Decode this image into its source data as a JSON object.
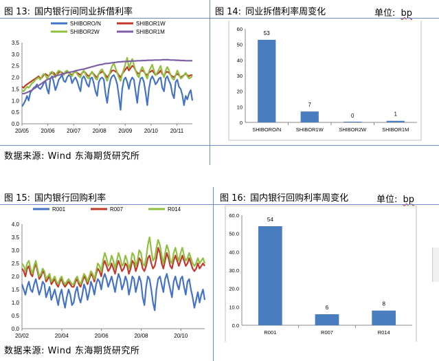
{
  "panels": {
    "p13": {
      "fig": "图 13:",
      "title": "国内银行间同业拆借利率"
    },
    "p14": {
      "fig": "图 14:",
      "title": "同业拆借利率周变化",
      "unit_label": "单位:",
      "unit_value": "bp"
    },
    "p15": {
      "fig": "图 15:",
      "title": "国内银行回购利率"
    },
    "p16": {
      "fig": "图 16:",
      "title": "国内银行回购利率周变化",
      "unit_label": "单位:",
      "unit_value": "bp"
    }
  },
  "source_top": "数据来源: Wind   东海期货研究所",
  "source_bottom": "数据来源: Wind   东海期货研究所",
  "colors": {
    "blue": "#4472c4",
    "red": "#c0392b",
    "green": "#8fbf3f",
    "purple": "#7d5fa6",
    "bar": "#4a7cc0"
  },
  "chart_data": [
    {
      "type": "line",
      "x_ticks": [
        "20/05",
        "20/06",
        "20/07",
        "20/08",
        "20/09",
        "20/10",
        "20/11"
      ],
      "y_ticks": [
        "0.0",
        "0.5",
        "1.0",
        "1.5",
        "2.0",
        "2.5",
        "3.0",
        "3.5"
      ],
      "ylim": [
        0,
        3.5
      ],
      "series": [
        {
          "name": "SHIBORO/N",
          "color": "#4472c4",
          "values": [
            0.75,
            0.85,
            1.0,
            1.2,
            1.0,
            1.35,
            1.45,
            1.55,
            1.6,
            1.7,
            1.55,
            1.5,
            1.6,
            1.75,
            1.85,
            1.5,
            1.3,
            1.95,
            2.05,
            1.8,
            1.45,
            1.65,
            1.9,
            2.0,
            2.1,
            1.85,
            1.8,
            2.0,
            2.1,
            2.05,
            1.75,
            1.9,
            2.0,
            1.85,
            1.6,
            1.4,
            1.95,
            2.05,
            1.9,
            1.7,
            1.6,
            1.95,
            2.0,
            1.75,
            1.4,
            1.2,
            1.8,
            1.95,
            2.0,
            1.9,
            1.3,
            0.9,
            1.5,
            1.9,
            2.05,
            2.1,
            1.95,
            1.7,
            1.2,
            0.6,
            1.5,
            1.9,
            2.0,
            1.8,
            1.5,
            1.85,
            2.0,
            1.9,
            1.4,
            0.9,
            1.6,
            1.95,
            2.0,
            1.8,
            1.35,
            0.8,
            1.5,
            1.9,
            2.05,
            1.9,
            1.7,
            1.8,
            1.95,
            2.0,
            1.55,
            1.4,
            1.95,
            2.05,
            1.85,
            1.7,
            1.3,
            1.1,
            1.8,
            1.9,
            1.6,
            1.5,
            1.25,
            0.8,
            1.2,
            1.05,
            1.3,
            1.45,
            1.0
          ]
        },
        {
          "name": "SHIBOR1W",
          "color": "#c0392b",
          "values": [
            1.6,
            1.55,
            1.65,
            1.7,
            1.75,
            1.8,
            1.85,
            1.9,
            1.95,
            2.0,
            2.05,
            1.95,
            2.0,
            2.1,
            2.15,
            2.1,
            2.05,
            2.15,
            2.2,
            2.2,
            2.1,
            2.15,
            2.2,
            2.25,
            2.2,
            2.15,
            2.2,
            2.25,
            2.2,
            2.15,
            2.1,
            2.2,
            2.25,
            2.2,
            2.15,
            2.1,
            2.2,
            2.25,
            2.2,
            2.1,
            2.05,
            2.15,
            2.2,
            2.15,
            2.05,
            2.0,
            2.15,
            2.2,
            2.25,
            2.2,
            2.1,
            2.0,
            2.1,
            2.2,
            2.3,
            2.3,
            2.25,
            2.2,
            2.1,
            2.0,
            2.15,
            2.25,
            2.35,
            2.45,
            2.3,
            2.4,
            2.5,
            2.45,
            2.3,
            2.2,
            2.15,
            2.25,
            2.3,
            2.25,
            2.15,
            2.1,
            2.2,
            2.25,
            2.3,
            2.2,
            2.1,
            2.15,
            2.2,
            2.3,
            2.15,
            2.05,
            2.2,
            2.25,
            2.2,
            2.1,
            2.05,
            2.0,
            2.1,
            2.15,
            2.1,
            2.0,
            2.05,
            2.1,
            2.15,
            2.1,
            2.05,
            2.1,
            2.1
          ]
        },
        {
          "name": "SHIBOR2W",
          "color": "#8fbf3f",
          "values": [
            1.45,
            1.4,
            1.5,
            1.6,
            1.55,
            1.65,
            1.75,
            1.8,
            1.9,
            1.95,
            2.0,
            1.9,
            2.05,
            2.15,
            2.1,
            1.95,
            2.05,
            2.2,
            2.25,
            2.1,
            2.0,
            2.2,
            2.3,
            2.25,
            2.15,
            2.1,
            2.25,
            2.3,
            2.2,
            2.1,
            2.05,
            2.2,
            2.3,
            2.15,
            2.05,
            2.0,
            2.2,
            2.3,
            2.15,
            2.0,
            1.95,
            2.15,
            2.25,
            2.1,
            1.95,
            1.9,
            2.15,
            2.3,
            2.35,
            2.2,
            2.0,
            1.85,
            2.05,
            2.3,
            2.5,
            2.6,
            2.4,
            2.2,
            2.0,
            1.85,
            2.15,
            2.35,
            2.6,
            2.85,
            2.4,
            2.6,
            2.8,
            2.55,
            2.3,
            2.1,
            2.0,
            2.3,
            2.45,
            2.3,
            2.1,
            1.95,
            2.25,
            2.4,
            2.55,
            2.3,
            2.1,
            2.2,
            2.35,
            2.5,
            2.2,
            2.0,
            2.3,
            2.45,
            2.3,
            2.1,
            1.95,
            1.9,
            2.1,
            2.3,
            2.15,
            1.95,
            2.0,
            2.1,
            2.2,
            2.05,
            1.95,
            2.0,
            2.05
          ]
        },
        {
          "name": "SHIBOR1M",
          "color": "#7d5fa6",
          "values": [
            1.3,
            1.3,
            1.32,
            1.35,
            1.38,
            1.42,
            1.45,
            1.5,
            1.55,
            1.6,
            1.65,
            1.7,
            1.75,
            1.8,
            1.85,
            1.9,
            1.93,
            1.96,
            2.0,
            2.02,
            2.05,
            2.08,
            2.1,
            2.12,
            2.14,
            2.16,
            2.18,
            2.2,
            2.22,
            2.23,
            2.24,
            2.26,
            2.28,
            2.3,
            2.32,
            2.33,
            2.35,
            2.36,
            2.38,
            2.4,
            2.42,
            2.44,
            2.46,
            2.48,
            2.5,
            2.52,
            2.54,
            2.55,
            2.56,
            2.58,
            2.6,
            2.6,
            2.61,
            2.62,
            2.63,
            2.64,
            2.65,
            2.66,
            2.67,
            2.67,
            2.68,
            2.68,
            2.69,
            2.69,
            2.7,
            2.7,
            2.71,
            2.71,
            2.71,
            2.72,
            2.72,
            2.72,
            2.73,
            2.73,
            2.73,
            2.74,
            2.74,
            2.74,
            2.74,
            2.75,
            2.75,
            2.75,
            2.75,
            2.75,
            2.76,
            2.76,
            2.76,
            2.76,
            2.76,
            2.75,
            2.75,
            2.75,
            2.74,
            2.74,
            2.74,
            2.73,
            2.73,
            2.73,
            2.72,
            2.72,
            2.72,
            2.72,
            2.72
          ]
        }
      ]
    },
    {
      "type": "bar",
      "categories": [
        "SHIBORO/N",
        "SHIBOR1W",
        "SHIBOR2W",
        "SHIBOR1M"
      ],
      "values": [
        53,
        7,
        0,
        1
      ],
      "y_ticks": [
        "0",
        "10",
        "20",
        "30",
        "40",
        "50",
        "60"
      ],
      "ylim": [
        0,
        60
      ]
    },
    {
      "type": "line",
      "x_ticks": [
        "20/02",
        "20/04",
        "20/06",
        "20/08",
        "20/10"
      ],
      "y_ticks": [
        "0.0",
        "0.5",
        "1.0",
        "1.5",
        "2.0",
        "2.5",
        "3.0",
        "3.5",
        "4.0"
      ],
      "ylim": [
        0,
        4.0
      ],
      "series": [
        {
          "name": "R001",
          "color": "#4472c4",
          "values": [
            1.7,
            1.5,
            1.3,
            1.6,
            1.8,
            1.5,
            1.4,
            1.7,
            1.9,
            1.6,
            1.3,
            1.5,
            1.8,
            1.7,
            1.2,
            1.4,
            1.6,
            1.1,
            1.3,
            1.5,
            1.2,
            0.9,
            1.3,
            1.5,
            1.1,
            0.8,
            1.2,
            1.5,
            1.3,
            0.9,
            1.0,
            1.4,
            1.6,
            1.2,
            1.0,
            1.3,
            1.7,
            1.5,
            1.1,
            1.4,
            1.8,
            1.6,
            1.3,
            1.7,
            1.9,
            1.8,
            1.5,
            1.9,
            2.1,
            1.9,
            1.6,
            1.8,
            2.0,
            1.7,
            1.4,
            1.8,
            2.1,
            1.9,
            1.5,
            1.7,
            2.0,
            1.8,
            1.3,
            1.6,
            2.0,
            1.9,
            1.4,
            1.7,
            2.0,
            1.8,
            1.2,
            0.9,
            1.6,
            2.0,
            1.9,
            1.5,
            1.0,
            0.7,
            1.5,
            1.9,
            2.0,
            1.7,
            1.4,
            1.9,
            2.1,
            1.8,
            1.5,
            1.2,
            1.8,
            2.0,
            1.7,
            1.5,
            1.9,
            2.0,
            1.6,
            1.3,
            1.8,
            1.9,
            1.5,
            1.2,
            0.8,
            1.1,
            1.4,
            1.0,
            1.3,
            1.5,
            1.1
          ]
        },
        {
          "name": "R007",
          "color": "#c0392b",
          "values": [
            2.3,
            2.2,
            2.0,
            2.3,
            2.4,
            2.1,
            2.0,
            2.3,
            2.5,
            2.2,
            1.9,
            2.0,
            2.2,
            2.1,
            1.8,
            1.9,
            2.0,
            1.7,
            1.8,
            1.9,
            1.7,
            1.6,
            1.8,
            1.9,
            1.7,
            1.6,
            1.7,
            1.8,
            1.7,
            1.6,
            1.6,
            1.8,
            1.9,
            1.7,
            1.6,
            1.8,
            2.0,
            1.9,
            1.7,
            1.9,
            2.1,
            2.0,
            1.8,
            2.1,
            2.3,
            2.2,
            2.0,
            2.4,
            2.6,
            2.4,
            2.2,
            2.3,
            2.5,
            2.3,
            2.1,
            2.4,
            2.6,
            2.4,
            2.2,
            2.3,
            2.5,
            2.4,
            2.1,
            2.3,
            2.6,
            2.5,
            2.2,
            2.4,
            2.7,
            2.6,
            2.3,
            2.2,
            2.4,
            2.7,
            2.8,
            2.5,
            2.3,
            2.4,
            2.7,
            3.1,
            2.9,
            2.5,
            2.3,
            2.6,
            2.9,
            2.7,
            2.4,
            2.3,
            2.6,
            2.8,
            2.6,
            2.4,
            2.6,
            2.8,
            2.6,
            2.4,
            2.5,
            2.7,
            2.5,
            2.3,
            2.2,
            2.3,
            2.5,
            2.3,
            2.4,
            2.5,
            2.4
          ]
        },
        {
          "name": "R014",
          "color": "#8fbf3f",
          "values": [
            2.5,
            2.4,
            2.2,
            2.5,
            2.6,
            2.3,
            2.1,
            2.4,
            2.6,
            2.3,
            2.0,
            2.1,
            2.3,
            2.2,
            1.9,
            2.0,
            2.1,
            1.8,
            1.9,
            2.0,
            1.8,
            1.7,
            1.9,
            2.0,
            1.8,
            1.7,
            1.8,
            1.9,
            1.8,
            1.7,
            1.7,
            1.9,
            2.0,
            1.8,
            1.7,
            1.9,
            2.1,
            2.0,
            1.8,
            2.0,
            2.2,
            2.1,
            1.9,
            2.2,
            2.5,
            2.4,
            2.2,
            2.6,
            2.9,
            2.7,
            2.4,
            2.5,
            2.8,
            2.6,
            2.3,
            2.6,
            2.9,
            2.7,
            2.4,
            2.5,
            2.8,
            2.6,
            2.3,
            2.5,
            2.9,
            2.8,
            2.4,
            2.6,
            3.0,
            2.9,
            2.5,
            2.4,
            2.7,
            3.2,
            3.5,
            3.0,
            2.6,
            2.7,
            3.1,
            3.4,
            3.2,
            2.8,
            2.5,
            2.9,
            3.2,
            3.0,
            2.6,
            2.5,
            2.9,
            3.1,
            2.8,
            2.6,
            2.9,
            3.1,
            2.8,
            2.6,
            2.7,
            2.9,
            2.7,
            2.5,
            2.4,
            2.5,
            2.7,
            2.5,
            2.6,
            2.7,
            2.5
          ]
        }
      ]
    },
    {
      "type": "bar",
      "categories": [
        "R001",
        "R007",
        "R014"
      ],
      "values": [
        54,
        6,
        8
      ],
      "y_ticks": [
        "0.0",
        "10.0",
        "20.0",
        "30.0",
        "40.0",
        "50.0",
        "60.0"
      ],
      "ylim": [
        0,
        60
      ]
    }
  ]
}
